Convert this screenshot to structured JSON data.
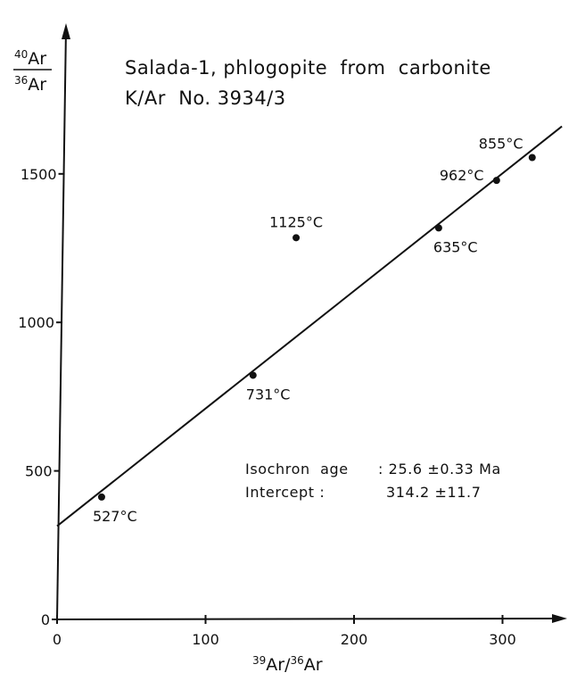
{
  "chart_data": {
    "type": "scatter",
    "title": "Salada-1, phlogopite  from  carbonite",
    "subtitle": "K/Ar  No. 3934/3",
    "xlabel": {
      "mass_a": "39",
      "elem_a": "Ar/",
      "mass_b": "36",
      "elem_b": "Ar"
    },
    "ylabel": {
      "num_mass": "40",
      "num_elem": "Ar",
      "den_mass": "36",
      "den_elem": "Ar"
    },
    "xlim": [
      0,
      340
    ],
    "ylim": [
      0,
      1650
    ],
    "x_ticks": [
      0,
      100,
      200,
      300
    ],
    "y_ticks": [
      0,
      500,
      1000,
      1500
    ],
    "grid": false,
    "points": [
      {
        "label": "527°C",
        "x": 30,
        "y": 412
      },
      {
        "label": "731°C",
        "x": 132,
        "y": 822
      },
      {
        "label": "1125°C",
        "x": 161,
        "y": 1285
      },
      {
        "label": "635°C",
        "x": 257,
        "y": 1318
      },
      {
        "label": "962°C",
        "x": 296,
        "y": 1478
      },
      {
        "label": "855°C",
        "x": 320,
        "y": 1555
      }
    ],
    "fit_line": {
      "x": [
        0,
        340
      ],
      "y": [
        314.2,
        1660
      ]
    },
    "annotations": [
      {
        "label": "Isochron  age",
        "value": ": 25.6 ±0.33 Ma"
      },
      {
        "label": "Intercept :",
        "value": "314.2 ±11.7"
      }
    ]
  }
}
